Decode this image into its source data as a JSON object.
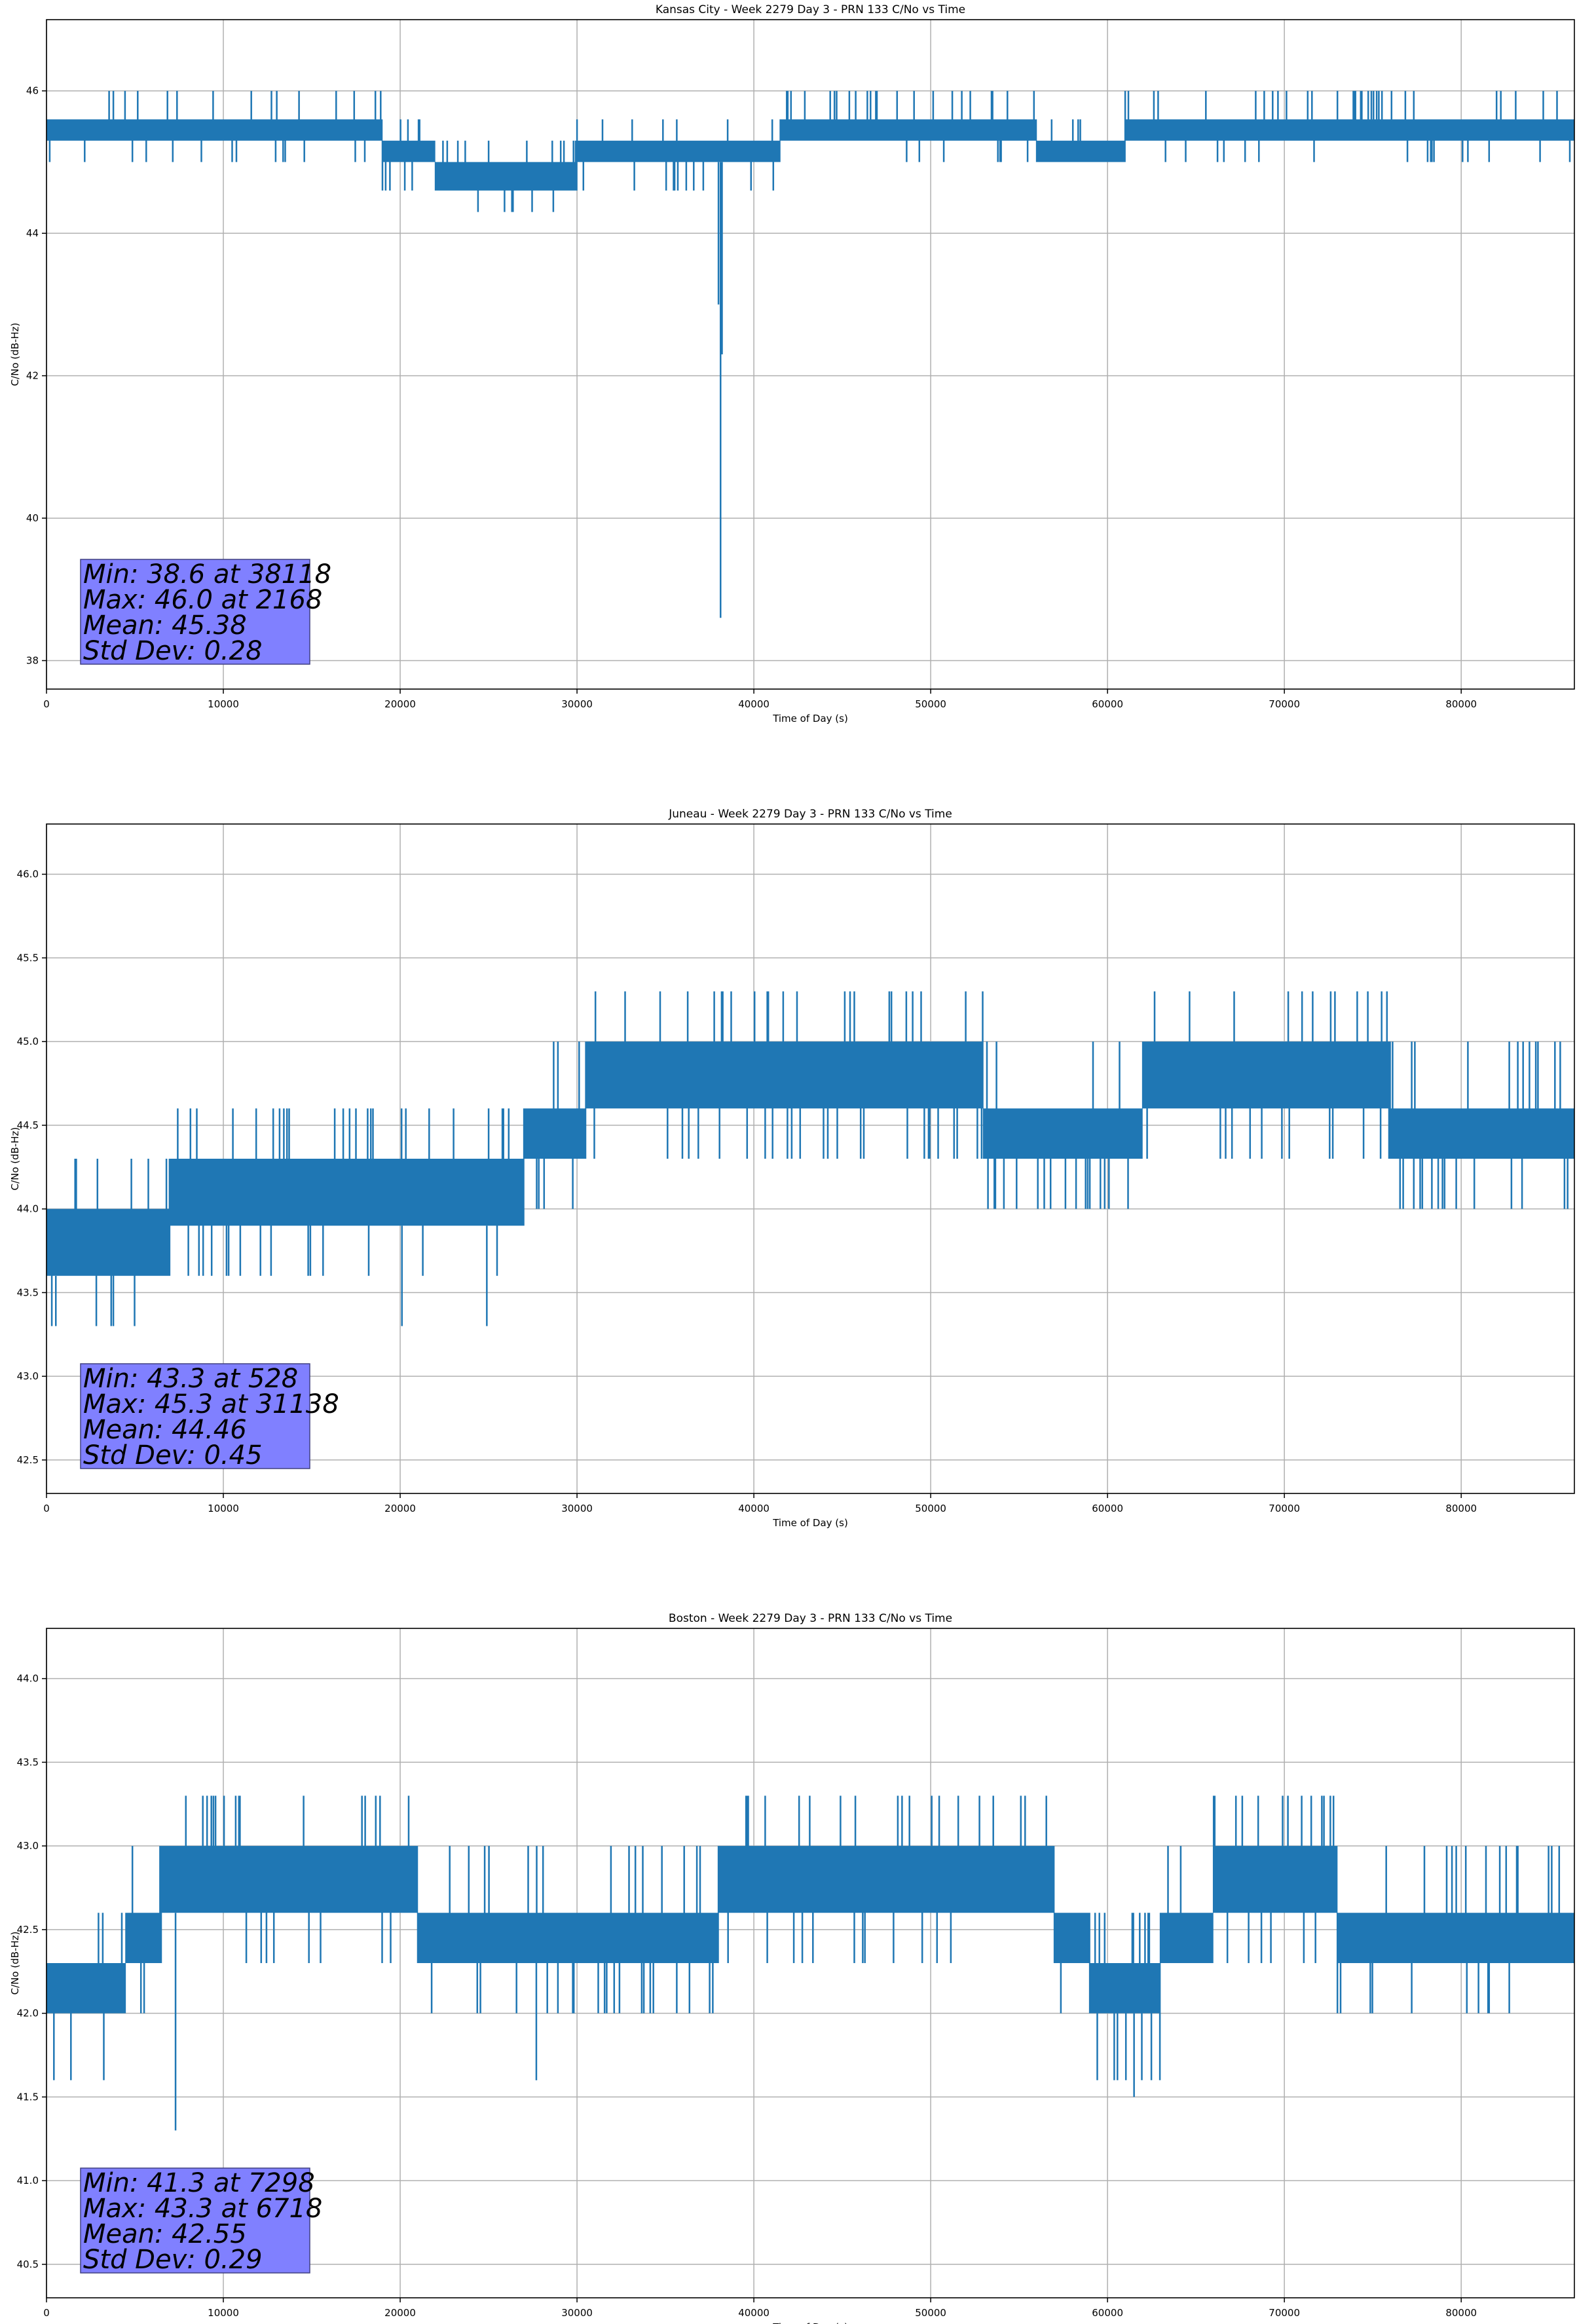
{
  "figure": {
    "background": "#ffffff",
    "series_color": "#1f77b4",
    "stats_box_color": "#8080ff"
  },
  "chart_data": [
    {
      "type": "line",
      "title": "Kansas City - Week 2279 Day 3 - PRN 133 C/No vs Time",
      "xlabel": "Time of Day (s)",
      "ylabel": "C/No (dB-Hz)",
      "xlim": [
        0,
        86400
      ],
      "ylim": [
        37.6,
        47.0
      ],
      "xticks": [
        0,
        10000,
        20000,
        30000,
        40000,
        50000,
        60000,
        70000,
        80000
      ],
      "yticks": [
        38,
        40,
        42,
        44,
        46
      ],
      "ytick_decimals": 0,
      "grid": true,
      "stats": [
        "Min: 38.6 at 38118",
        "Max: 46.0 at 2168",
        "Mean: 45.38",
        "Std Dev: 0.28"
      ],
      "band_segments": [
        {
          "x": [
            0,
            19000
          ],
          "lo": 45.3,
          "hi": 45.6,
          "spikes_up": [
            46.0
          ],
          "spikes_down": [
            45.0
          ]
        },
        {
          "x": [
            19000,
            22000
          ],
          "lo": 45.0,
          "hi": 45.3,
          "spikes_up": [
            45.6
          ],
          "spikes_down": [
            44.6
          ]
        },
        {
          "x": [
            22000,
            30000
          ],
          "lo": 44.6,
          "hi": 45.0,
          "spikes_up": [
            45.3
          ],
          "spikes_down": [
            44.3
          ]
        },
        {
          "x": [
            30000,
            41500
          ],
          "lo": 45.0,
          "hi": 45.3,
          "spikes_up": [
            45.6
          ],
          "spikes_down": [
            44.6
          ]
        },
        {
          "x": [
            41500,
            56000
          ],
          "lo": 45.3,
          "hi": 45.6,
          "spikes_up": [
            46.0
          ],
          "spikes_down": [
            45.0
          ]
        },
        {
          "x": [
            56000,
            61000
          ],
          "lo": 45.0,
          "hi": 45.3,
          "spikes_up": [
            45.6
          ],
          "spikes_down": [
            45.0
          ]
        },
        {
          "x": [
            61000,
            86400
          ],
          "lo": 45.3,
          "hi": 45.6,
          "spikes_up": [
            46.0
          ],
          "spikes_down": [
            45.0
          ]
        }
      ],
      "dips": [
        {
          "x": 38118,
          "y": 38.6
        },
        {
          "x": 38000,
          "y": 43.0
        },
        {
          "x": 38200,
          "y": 42.3
        }
      ]
    },
    {
      "type": "line",
      "title": "Juneau - Week 2279 Day 3 - PRN 133 C/No vs Time",
      "xlabel": "Time of Day (s)",
      "ylabel": "C/No (dB-Hz)",
      "xlim": [
        0,
        86400
      ],
      "ylim": [
        42.3,
        46.3
      ],
      "xticks": [
        0,
        10000,
        20000,
        30000,
        40000,
        50000,
        60000,
        70000,
        80000
      ],
      "yticks": [
        42.5,
        43.0,
        43.5,
        44.0,
        44.5,
        45.0,
        45.5,
        46.0
      ],
      "ytick_decimals": 1,
      "grid": true,
      "stats": [
        "Min: 43.3 at 528",
        "Max: 45.3 at 31138",
        "Mean: 44.46",
        "Std Dev: 0.45"
      ],
      "band_segments": [
        {
          "x": [
            0,
            7000
          ],
          "lo": 43.6,
          "hi": 44.0,
          "spikes_up": [
            44.3
          ],
          "spikes_down": [
            43.3
          ]
        },
        {
          "x": [
            7000,
            27000
          ],
          "lo": 43.9,
          "hi": 44.3,
          "spikes_up": [
            44.6
          ],
          "spikes_down": [
            43.6
          ]
        },
        {
          "x": [
            27000,
            30500
          ],
          "lo": 44.3,
          "hi": 44.6,
          "spikes_up": [
            45.0
          ],
          "spikes_down": [
            44.0
          ]
        },
        {
          "x": [
            30500,
            53000
          ],
          "lo": 44.6,
          "hi": 45.0,
          "spikes_up": [
            45.3
          ],
          "spikes_down": [
            44.3
          ]
        },
        {
          "x": [
            53000,
            62000
          ],
          "lo": 44.3,
          "hi": 44.6,
          "spikes_up": [
            45.0
          ],
          "spikes_down": [
            44.0
          ]
        },
        {
          "x": [
            62000,
            76000
          ],
          "lo": 44.6,
          "hi": 45.0,
          "spikes_up": [
            45.3
          ],
          "spikes_down": [
            44.3
          ]
        },
        {
          "x": [
            76000,
            86400
          ],
          "lo": 44.3,
          "hi": 44.6,
          "spikes_up": [
            45.0
          ],
          "spikes_down": [
            44.0
          ]
        }
      ],
      "dips": [
        {
          "x": 20100,
          "y": 43.3
        },
        {
          "x": 24900,
          "y": 43.3
        },
        {
          "x": 528,
          "y": 43.3
        }
      ]
    },
    {
      "type": "line",
      "title": "Boston - Week 2279 Day 3 - PRN 133 C/No vs Time",
      "xlabel": "Time of Day (s)",
      "ylabel": "C/No (dB-Hz)",
      "xlim": [
        0,
        86400
      ],
      "ylim": [
        40.3,
        44.3
      ],
      "xticks": [
        0,
        10000,
        20000,
        30000,
        40000,
        50000,
        60000,
        70000,
        80000
      ],
      "yticks": [
        40.5,
        41.0,
        41.5,
        42.0,
        42.5,
        43.0,
        43.5,
        44.0
      ],
      "ytick_decimals": 1,
      "grid": true,
      "stats": [
        "Min: 41.3 at 7298",
        "Max: 43.3 at 6718",
        "Mean: 42.55",
        "Std Dev: 0.29"
      ],
      "band_segments": [
        {
          "x": [
            0,
            4500
          ],
          "lo": 42.0,
          "hi": 42.3,
          "spikes_up": [
            42.6
          ],
          "spikes_down": [
            41.6
          ]
        },
        {
          "x": [
            4500,
            6500
          ],
          "lo": 42.3,
          "hi": 42.6,
          "spikes_up": [
            43.0
          ],
          "spikes_down": [
            42.0
          ]
        },
        {
          "x": [
            6500,
            21000
          ],
          "lo": 42.6,
          "hi": 43.0,
          "spikes_up": [
            43.3
          ],
          "spikes_down": [
            42.3
          ]
        },
        {
          "x": [
            21000,
            38000
          ],
          "lo": 42.3,
          "hi": 42.6,
          "spikes_up": [
            43.0
          ],
          "spikes_down": [
            42.0
          ]
        },
        {
          "x": [
            38000,
            57000
          ],
          "lo": 42.6,
          "hi": 43.0,
          "spikes_up": [
            43.3
          ],
          "spikes_down": [
            42.3
          ]
        },
        {
          "x": [
            57000,
            59000
          ],
          "lo": 42.3,
          "hi": 42.6,
          "spikes_up": [
            43.0
          ],
          "spikes_down": [
            42.0
          ]
        },
        {
          "x": [
            59000,
            63000
          ],
          "lo": 42.0,
          "hi": 42.3,
          "spikes_up": [
            42.6
          ],
          "spikes_down": [
            41.6
          ]
        },
        {
          "x": [
            63000,
            66000
          ],
          "lo": 42.3,
          "hi": 42.6,
          "spikes_up": [
            43.0
          ],
          "spikes_down": [
            42.0
          ]
        },
        {
          "x": [
            66000,
            73000
          ],
          "lo": 42.6,
          "hi": 43.0,
          "spikes_up": [
            43.3
          ],
          "spikes_down": [
            42.3
          ]
        },
        {
          "x": [
            73000,
            86400
          ],
          "lo": 42.3,
          "hi": 42.6,
          "spikes_up": [
            43.0
          ],
          "spikes_down": [
            42.0
          ]
        }
      ],
      "dips": [
        {
          "x": 7298,
          "y": 41.3
        },
        {
          "x": 61500,
          "y": 41.5
        },
        {
          "x": 27700,
          "y": 41.6
        }
      ]
    }
  ]
}
